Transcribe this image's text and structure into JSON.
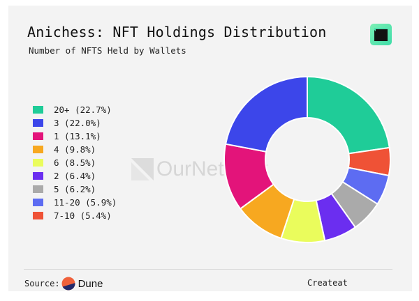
{
  "header": {
    "title": "Anichess: NFT Holdings Distribution",
    "subtitle": "Number of NFTS Held by Wallets"
  },
  "watermark": "OurNetwork",
  "footer": {
    "source_label": "Source:",
    "source_name": "Dune",
    "created": "Createat"
  },
  "chart_data": {
    "type": "pie",
    "donut": true,
    "title": "Anichess: NFT Holdings Distribution",
    "legend_position": "left",
    "legend": [
      {
        "label": "20+ (22.7%)",
        "category": "20+",
        "value": 22.7,
        "color": "#1fcc98"
      },
      {
        "label": "3 (22.0%)",
        "category": "3",
        "value": 22.0,
        "color": "#3c46ea"
      },
      {
        "label": "1 (13.1%)",
        "category": "1",
        "value": 13.1,
        "color": "#e3147a"
      },
      {
        "label": "4 (9.8%)",
        "category": "4",
        "value": 9.8,
        "color": "#f7a820"
      },
      {
        "label": "6 (8.5%)",
        "category": "6",
        "value": 8.5,
        "color": "#eafc5c"
      },
      {
        "label": "2 (6.4%)",
        "category": "2",
        "value": 6.4,
        "color": "#6b2ef0"
      },
      {
        "label": "5 (6.2%)",
        "category": "5",
        "value": 6.2,
        "color": "#aaaaaa"
      },
      {
        "label": "11-20 (5.9%)",
        "category": "11-20",
        "value": 5.9,
        "color": "#5d6cf2"
      },
      {
        "label": "7-10 (5.4%)",
        "category": "7-10",
        "value": 5.4,
        "color": "#ef5236"
      }
    ],
    "slice_order_clockwise": [
      "20+",
      "7-10",
      "11-20",
      "5",
      "2",
      "6",
      "4",
      "1",
      "3"
    ]
  }
}
